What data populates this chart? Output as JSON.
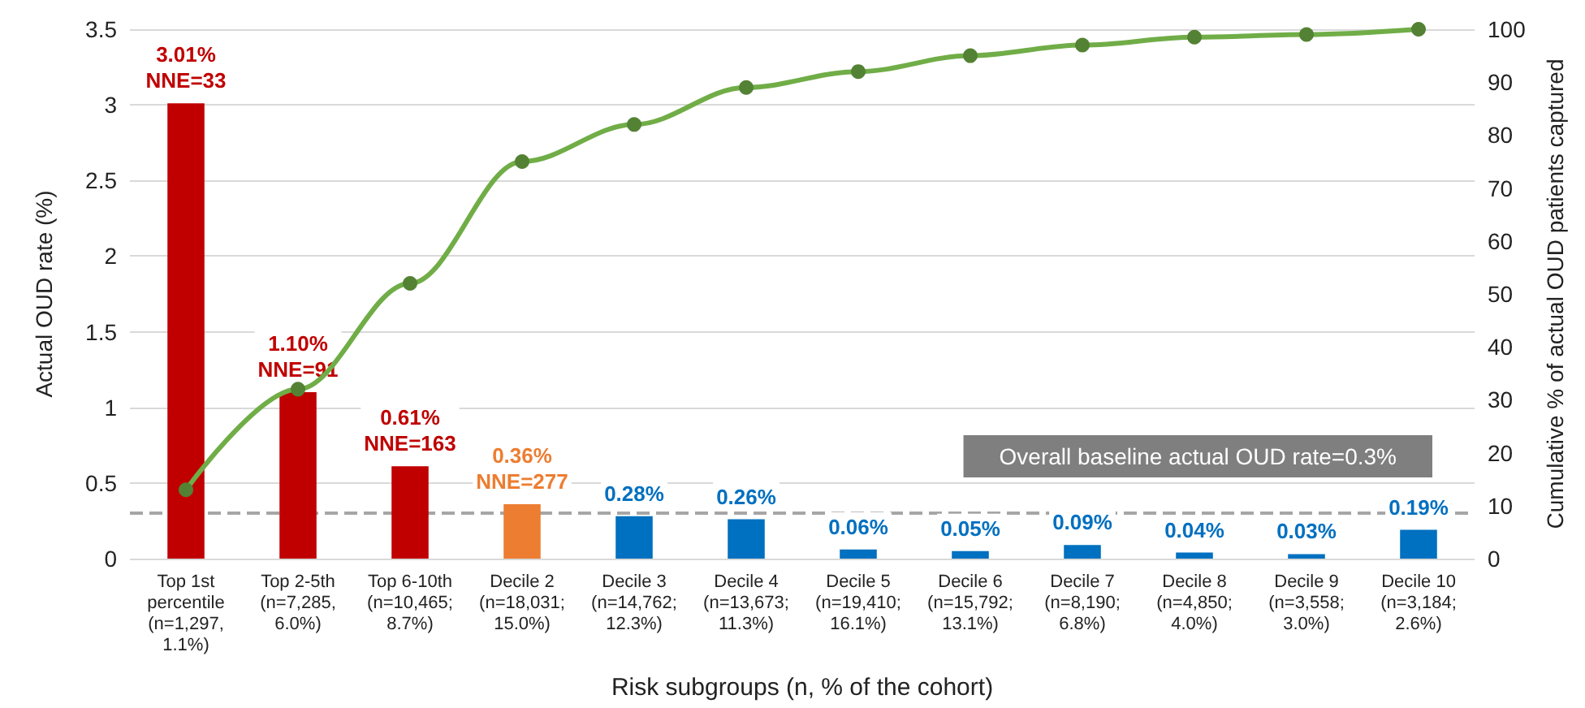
{
  "chart_data": {
    "type": "bar",
    "xlabel": "Risk subgroups (n, % of the cohort)",
    "ylabel": "Actual OUD rate (%)",
    "y2label": "Cumulative % of actual OUD patients captured",
    "categories": [
      "Top 1st\npercentile\n(n=1,297,\n1.1%)",
      "Top 2-5th\n(n=7,285,\n6.0%)",
      "Top 6-10th\n(n=10,465;\n8.7%)",
      "Decile 2\n(n=18,031;\n15.0%)",
      "Decile 3\n(n=14,762;\n12.3%)",
      "Decile 4\n(n=13,673;\n11.3%)",
      "Decile 5\n(n=19,410;\n16.1%)",
      "Decile 6\n(n=15,792;\n13.1%)",
      "Decile 7\n(n=8,190;\n6.8%)",
      "Decile 8\n(n=4,850;\n4.0%)",
      "Decile 9\n(n=3,558;\n3.0%)",
      "Decile 10\n(n=3,184;\n2.6%)"
    ],
    "series": [
      {
        "colors": [
          "#c00000",
          "#c00000",
          "#c00000",
          "#ed7d31",
          "#0070c0",
          "#0070c0",
          "#0070c0",
          "#0070c0",
          "#0070c0",
          "#0070c0",
          "#0070c0",
          "#0070c0"
        ],
        "values": [
          3.01,
          1.1,
          0.61,
          0.36,
          0.28,
          0.26,
          0.06,
          0.05,
          0.09,
          0.04,
          0.03,
          0.19
        ],
        "value_labels": [
          "3.01%\nNNE=33",
          "1.10%\nNNE=91",
          "0.61%\nNNE=163",
          "0.36%\nNNE=277",
          "0.28%",
          "0.26%",
          "0.06%",
          "0.05%",
          "0.09%",
          "0.04%",
          "0.03%",
          "0.19%"
        ]
      },
      {
        "type": "line",
        "axis": "y2",
        "color": "#70ad47",
        "values": [
          13,
          32,
          52,
          75,
          82,
          89,
          92,
          95,
          97,
          98.5,
          99,
          100
        ]
      }
    ],
    "ylim": [
      0,
      3.5
    ],
    "yticks": [
      0,
      0.5,
      1,
      1.5,
      2,
      2.5,
      3,
      3.5
    ],
    "y2lim": [
      0,
      100
    ],
    "y2ticks": [
      0,
      10,
      20,
      30,
      40,
      50,
      60,
      70,
      80,
      90,
      100
    ],
    "grid": "y",
    "marker": "circle",
    "ref_lines": [
      {
        "axis": "y",
        "value": 0.3,
        "label": "Overall baseline actual OUD rate=0.3%",
        "color": "#a6a6a6",
        "line_style": "dashed"
      }
    ]
  }
}
